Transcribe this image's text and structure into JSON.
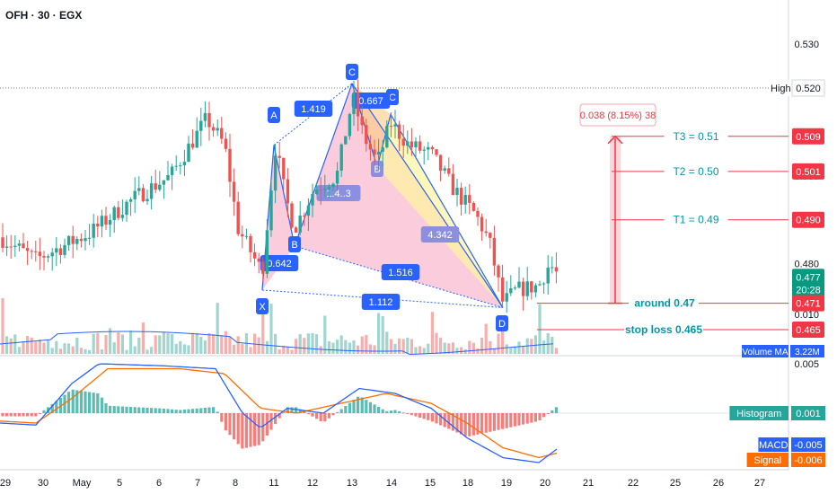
{
  "header": {
    "symbol": "OFH · 30 · EGX"
  },
  "colors": {
    "up": "#26a69a",
    "down": "#ef5350",
    "volume_up": "#9fd6cf",
    "volume_down": "#f5b0ae",
    "pattern_blue": "#2962ff",
    "pattern_fill": "#f8bbd0",
    "pattern_orange": "#ffcc80",
    "pattern_yellow": "#fff59d",
    "macd": "#2962ff",
    "signal": "#ff6d00",
    "target": "#f23645"
  },
  "price_axis": {
    "ticks": [
      "0.530",
      "0.520",
      "0.510",
      "0.500",
      "0.490",
      "0.480",
      "0.470"
    ],
    "badges": [
      {
        "label": "High",
        "value": "0.520",
        "style": "high"
      },
      {
        "value": "0.509",
        "style": "red"
      },
      {
        "value": "0.501",
        "style": "red"
      },
      {
        "value": "0.490",
        "style": "red"
      },
      {
        "value": "0.477",
        "sub": "20:28",
        "style": "green"
      },
      {
        "value": "0.471",
        "style": "red"
      },
      {
        "value": "0.465",
        "style": "red"
      }
    ],
    "volume_label": "Volume MA",
    "volume_value": "3.22M"
  },
  "macd_axis": {
    "ticks": [
      "0.010",
      "0.005"
    ],
    "histogram_label": "Histogram",
    "histogram_value": "0.001",
    "macd_label": "MACD",
    "macd_value": "-0.005",
    "signal_label": "Signal",
    "signal_value": "-0.006"
  },
  "time_axis": [
    "29",
    "30",
    "May",
    "5",
    "6",
    "7",
    "8",
    "11",
    "12",
    "13",
    "14",
    "15",
    "18",
    "19",
    "20",
    "21",
    "22",
    "25",
    "26",
    "27"
  ],
  "pattern": {
    "points": [
      {
        "label": "X",
        "price": 0.474
      },
      {
        "label": "A",
        "price": 0.507
      },
      {
        "label": "B",
        "price": 0.484
      },
      {
        "label": "C",
        "price": 0.521
      },
      {
        "label": "B",
        "price": 0.502
      },
      {
        "label": "C",
        "price": 0.514
      },
      {
        "label": "D",
        "price": 0.47
      }
    ],
    "ratios": [
      "1.419",
      "0.642",
      "0.667",
      "1.4..3",
      "4.342",
      "1.516",
      "1.112"
    ]
  },
  "annotations": {
    "measure": "0.038 (8.15%) 38",
    "t3": "T3 = 0.51",
    "t2": "T2 = 0.50",
    "t1": "T1 = 0.49",
    "entry": "around  0.47",
    "stop": "stop loss 0.465"
  },
  "chart_data": {
    "type": "candlestick",
    "symbol": "OFH",
    "interval": "30",
    "exchange": "EGX",
    "x_labels": [
      "29",
      "30",
      "May",
      "5",
      "6",
      "7",
      "8",
      "11",
      "12",
      "13",
      "14",
      "15",
      "18",
      "19",
      "20",
      "21",
      "22",
      "25",
      "26",
      "27"
    ],
    "y_range": [
      0.465,
      0.533
    ],
    "levels": {
      "high": 0.52,
      "t3": 0.509,
      "t2": 0.501,
      "t1": 0.49,
      "entry": 0.471,
      "stop": 0.465,
      "last": 0.477
    },
    "indicators": [
      "Volume MA",
      "MACD",
      "Signal",
      "Histogram"
    ]
  }
}
